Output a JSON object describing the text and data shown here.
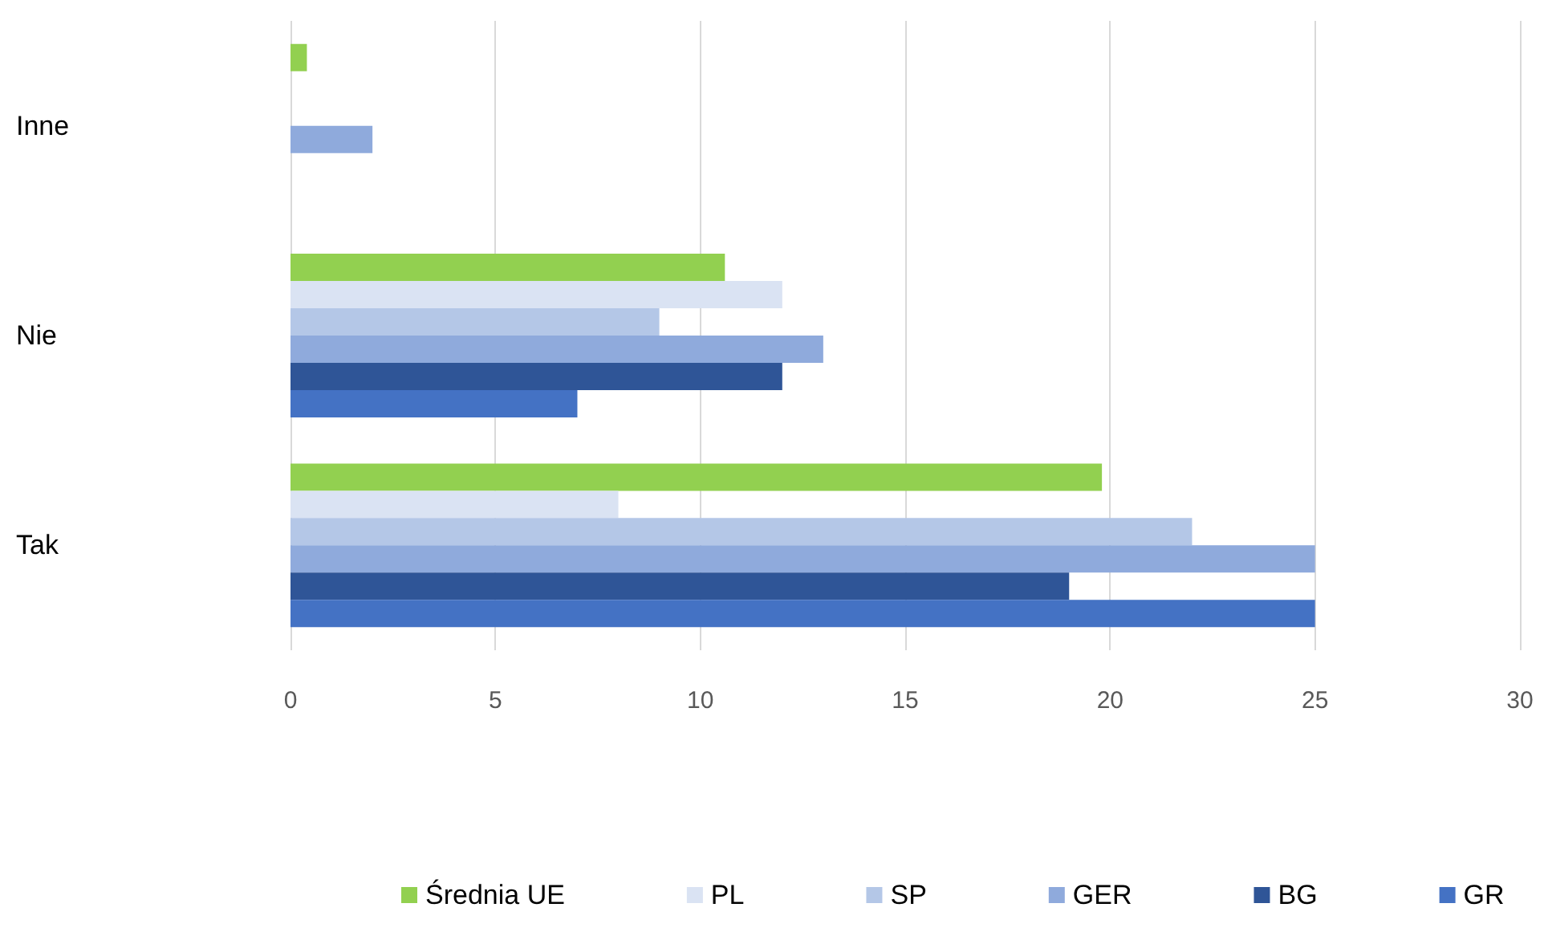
{
  "chart_data": {
    "type": "bar",
    "orientation": "horizontal",
    "categories": [
      "Inne",
      "Nie",
      "Tak"
    ],
    "series": [
      {
        "name": "Średnia UE",
        "color": "#92d050",
        "values": [
          0.4,
          10.6,
          19.8
        ]
      },
      {
        "name": "PL",
        "color": "#dae3f3",
        "values": [
          null,
          12,
          8
        ]
      },
      {
        "name": "SP",
        "color": "#b4c7e7",
        "values": [
          null,
          9,
          22
        ]
      },
      {
        "name": "GER",
        "color": "#8faadc",
        "values": [
          2,
          13,
          25
        ]
      },
      {
        "name": "BG",
        "color": "#2f5597",
        "values": [
          null,
          12,
          19
        ]
      },
      {
        "name": "GR",
        "color": "#4472c4",
        "values": [
          null,
          7,
          25
        ]
      }
    ],
    "xlim": [
      0,
      30
    ],
    "xticks": [
      0,
      5,
      10,
      15,
      20,
      25,
      30
    ],
    "grid": "x",
    "legend": "bottom"
  }
}
